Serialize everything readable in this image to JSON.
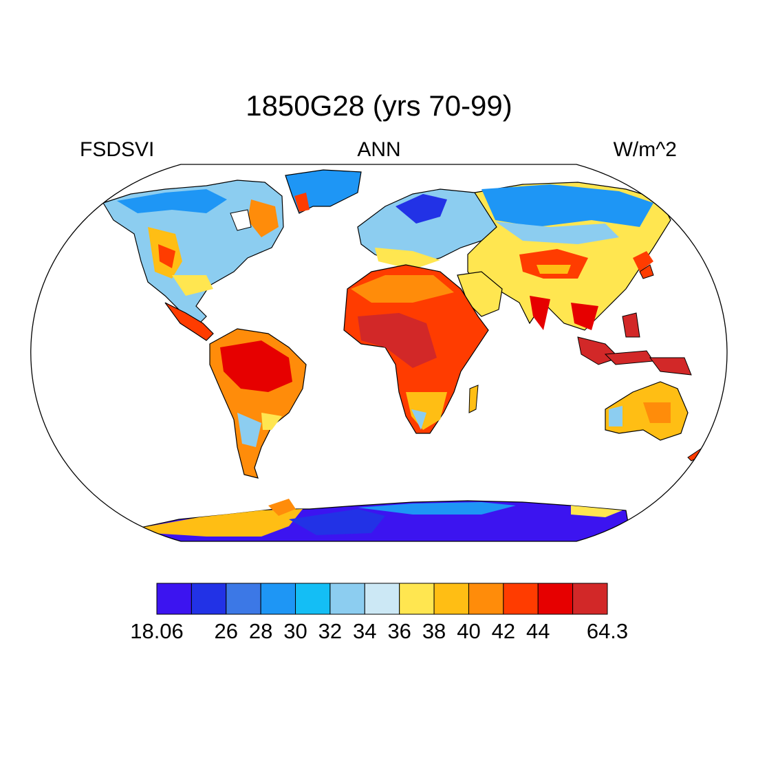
{
  "title": "1850G28 (yrs 70-99)",
  "left_label": "FSDSVI",
  "center_label": "ANN",
  "right_label": "W/m^2",
  "colorbar": {
    "colors": [
      "#3c14f0",
      "#2232e6",
      "#3c78e6",
      "#1e96f5",
      "#14bef5",
      "#8ccdf0",
      "#cce8f5",
      "#ffe650",
      "#ffbe14",
      "#ff8c0a",
      "#ff3c00",
      "#e60000",
      "#d22828"
    ],
    "labels": [
      "18.06",
      "",
      "26",
      "28",
      "30",
      "32",
      "34",
      "36",
      "38",
      "40",
      "42",
      "44",
      "",
      "64.3"
    ]
  }
}
